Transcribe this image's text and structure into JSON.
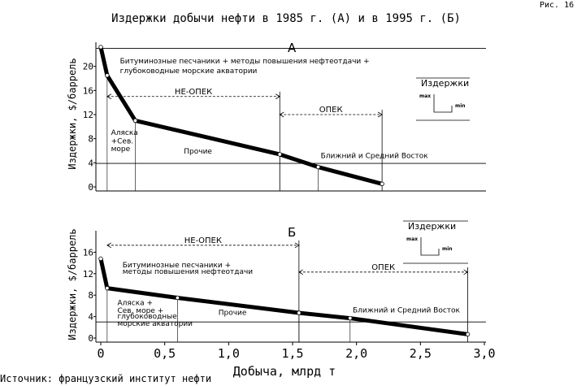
{
  "fig_label": "Рис. 16",
  "title": "Издержки добычи нефти в 1985 г. (А) и в 1995 г. (Б)",
  "source": "Источник: французский институт нефти",
  "chart_data": [
    {
      "type": "line",
      "panel_label": "А",
      "ylabel": "Издержки, $/баррель",
      "yticks": [
        0,
        4,
        8,
        12,
        16,
        20
      ],
      "ylim": [
        0,
        24
      ],
      "xlim": [
        0,
        3.0
      ],
      "reference_lines": [
        23,
        3.9
      ],
      "series": [
        {
          "x": [
            0.0,
            0.05,
            0.27,
            1.4,
            1.7,
            2.2
          ],
          "y": [
            23.2,
            18.5,
            11.0,
            5.4,
            3.3,
            0.5
          ]
        }
      ],
      "segments": [
        {
          "label": "НЕ-ОПЕК",
          "from": 0.05,
          "to": 1.4,
          "y": 15.0
        },
        {
          "label": "ОПЕК",
          "from": 1.4,
          "to": 2.2,
          "y": 12.0
        }
      ],
      "annotations": [
        {
          "text": "Битуминозные песчаники + методы повышения нефтеотдачи +",
          "x": 0.15,
          "y": 20.5
        },
        {
          "text": "глубоководные морские акватории",
          "x": 0.15,
          "y": 18.9
        },
        {
          "text": "Аляска",
          "x": 0.08,
          "y": 8.6
        },
        {
          "text": "+Сев.",
          "x": 0.08,
          "y": 7.2
        },
        {
          "text": "море",
          "x": 0.08,
          "y": 5.9
        },
        {
          "text": "Прочие",
          "x": 0.65,
          "y": 5.5
        },
        {
          "text": "Ближний и Средний Восток",
          "x": 1.72,
          "y": 4.8
        }
      ],
      "legend": {
        "title": "Издержки",
        "max_label": "max",
        "min_label": "min"
      }
    },
    {
      "type": "line",
      "panel_label": "Б",
      "ylabel": "Издержки, $/баррель",
      "yticks": [
        0,
        4,
        8,
        12,
        16
      ],
      "ylim": [
        0,
        20
      ],
      "xlim": [
        0,
        3.0
      ],
      "reference_lines": [
        3.0
      ],
      "series": [
        {
          "x": [
            0.0,
            0.05,
            0.6,
            1.55,
            1.95,
            2.87
          ],
          "y": [
            14.8,
            9.3,
            7.5,
            4.7,
            3.7,
            0.7
          ]
        }
      ],
      "segments": [
        {
          "label": "НЕ-ОПЕК",
          "from": 0.05,
          "to": 1.55,
          "y": 17.3
        },
        {
          "label": "ОПЕК",
          "from": 1.55,
          "to": 2.87,
          "y": 12.3
        }
      ],
      "annotations": [
        {
          "text": "Битуминозные песчаники +",
          "x": 0.17,
          "y": 13.2
        },
        {
          "text": "методы повышения нефтеотдачи",
          "x": 0.17,
          "y": 12.0
        },
        {
          "text": "Аляска +",
          "x": 0.13,
          "y": 6.1
        },
        {
          "text": "Сев. море +",
          "x": 0.13,
          "y": 4.7
        },
        {
          "text": "глубоководные",
          "x": 0.13,
          "y": 3.6
        },
        {
          "text": "морские акватории",
          "x": 0.13,
          "y": 2.3
        },
        {
          "text": "Прочие",
          "x": 0.92,
          "y": 4.3
        },
        {
          "text": "Ближний и Средний Восток",
          "x": 1.97,
          "y": 4.8
        }
      ],
      "legend": {
        "title": "Издержки",
        "max_label": "max",
        "min_label": "min"
      }
    }
  ],
  "xaxis": {
    "label": "Добыча, млрд т",
    "ticks": [
      0,
      0.5,
      1.0,
      1.5,
      2.0,
      2.5,
      3.0
    ],
    "tick_labels": [
      "0",
      "0,5",
      "1,0",
      "1,5",
      "2,0",
      "2,5",
      "3,0"
    ]
  }
}
